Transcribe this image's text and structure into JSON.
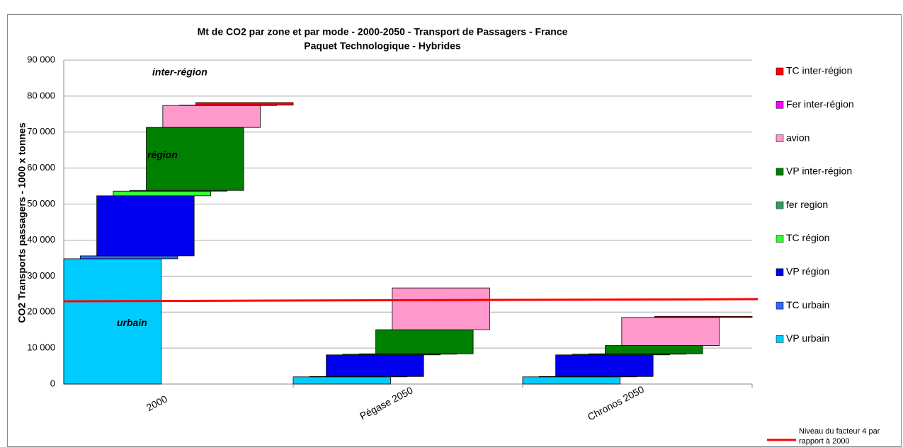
{
  "chart_data": {
    "type": "waterfall",
    "title": "Mt de CO2 par zone et par mode - 2000-2050 - Transport de Passagers - France",
    "subtitle": "Paquet Technologique - Hybrides",
    "y_label": "CO2  Transports passagers - 1000 x tonnes",
    "categories": [
      "2000",
      "Pégase 2050",
      "Chronos 2050"
    ],
    "ylim": [
      0,
      90000
    ],
    "yticks": [
      0,
      {
        "value": 10000,
        "label": "10 000"
      },
      {
        "value": 20000,
        "label": "20 000"
      },
      {
        "value": 30000,
        "label": "30 000"
      },
      {
        "value": 40000,
        "label": "40 000"
      },
      {
        "value": 50000,
        "label": "50 000"
      },
      {
        "value": 60000,
        "label": "60 000"
      },
      {
        "value": 70000,
        "label": "70 000"
      },
      {
        "value": 80000,
        "label": "80 000"
      },
      {
        "value": 90000,
        "label": "90 000"
      }
    ],
    "grid": true,
    "series": [
      {
        "name": "VP urbain",
        "color": "#00ccff",
        "values": [
          34800,
          2000,
          2000
        ]
      },
      {
        "name": "TC urbain",
        "color": "#3366ff",
        "values": [
          800,
          100,
          100
        ]
      },
      {
        "name": "VP région",
        "color": "#0000ee",
        "values": [
          16700,
          6000,
          6000
        ]
      },
      {
        "name": "TC région",
        "color": "#33ff33",
        "values": [
          1300,
          200,
          200
        ]
      },
      {
        "name": "fer region",
        "color": "#339966",
        "values": [
          200,
          100,
          100
        ]
      },
      {
        "name": "VP inter-région",
        "color": "#008000",
        "values": [
          17500,
          6700,
          2300
        ]
      },
      {
        "name": "avion",
        "color": "#ff99cc",
        "values": [
          6100,
          11600,
          7800
        ]
      },
      {
        "name": "Fer inter-région",
        "color": "#ff00ff",
        "values": [
          100,
          0,
          0
        ]
      },
      {
        "name": "TC inter-région",
        "color": "#ff0000",
        "values": [
          700,
          0,
          300
        ]
      }
    ],
    "reference": {
      "name": "Niveau du facteur 4 par rapport à 2000",
      "color": "#ff0000",
      "values": [
        23000,
        23600
      ]
    },
    "annotations": [
      {
        "text": "inter-région",
        "value": 86500
      },
      {
        "text": "région",
        "value": 63500
      },
      {
        "text": "urbain",
        "value": 16800
      }
    ]
  }
}
